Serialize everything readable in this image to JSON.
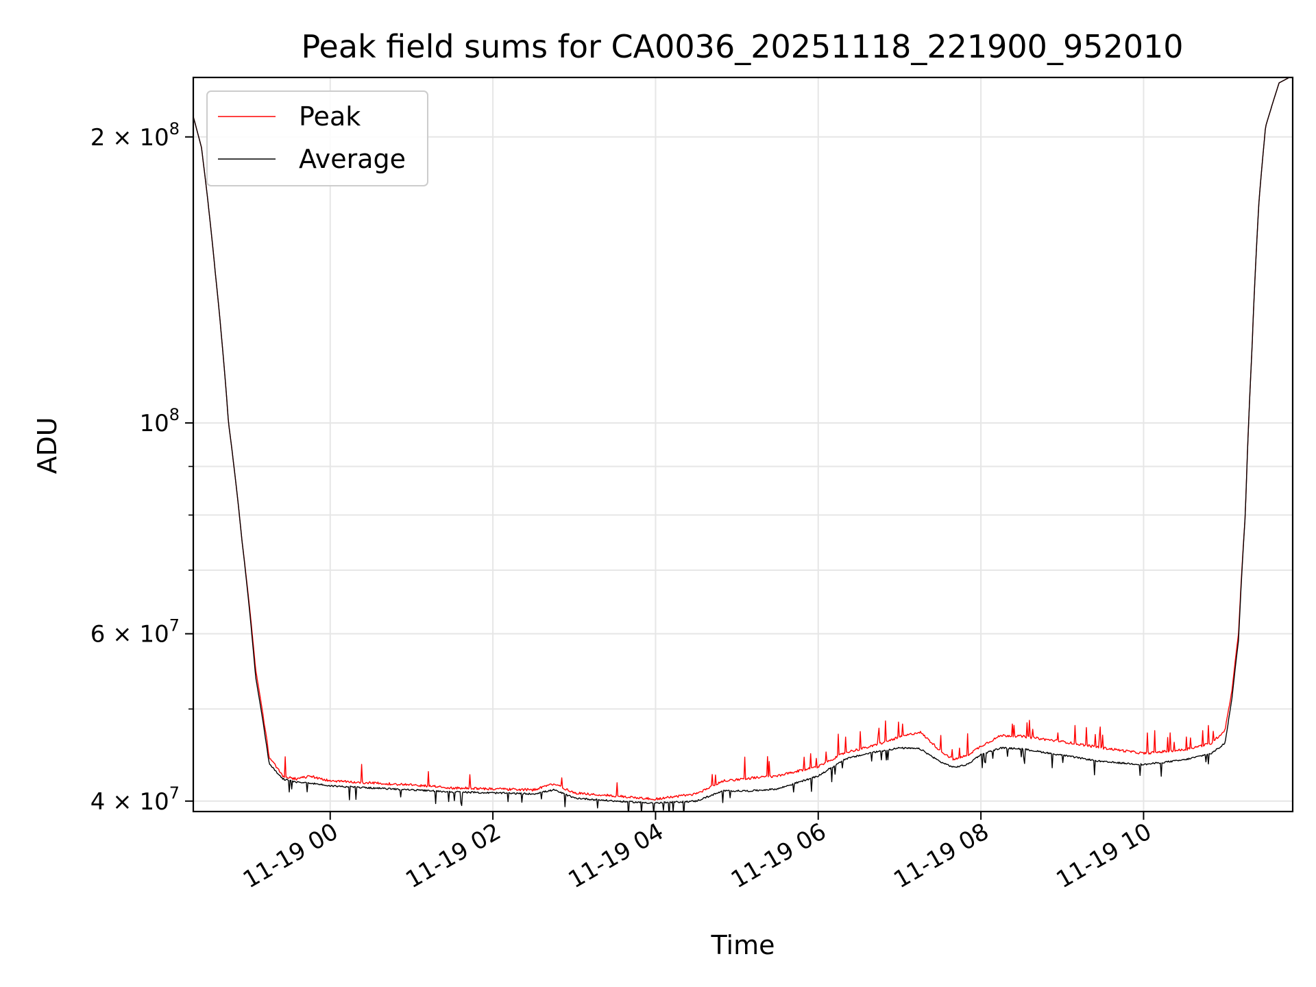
{
  "chart_data": {
    "type": "line",
    "title": "Peak field sums for CA0036_20251118_221900_952010",
    "xlabel": "Time",
    "ylabel": "ADU",
    "y_scale": "log",
    "ylim": [
      39000000,
      231000000
    ],
    "xlim": [
      "11-18 22:19",
      "11-19 11:50"
    ],
    "grid": true,
    "legend_position": "top-left",
    "x_ticks": [
      {
        "t": "11-19 00:00",
        "label": "11-19 00"
      },
      {
        "t": "11-19 02:00",
        "label": "11-19 02"
      },
      {
        "t": "11-19 04:00",
        "label": "11-19 04"
      },
      {
        "t": "11-19 06:00",
        "label": "11-19 06"
      },
      {
        "t": "11-19 08:00",
        "label": "11-19 08"
      },
      {
        "t": "11-19 10:00",
        "label": "11-19 10"
      }
    ],
    "y_major_ticks": [
      {
        "value": 40000000,
        "base": "4 × 10",
        "exp": "7"
      },
      {
        "value": 60000000,
        "base": "6 × 10",
        "exp": "7"
      },
      {
        "value": 100000000,
        "base": "10",
        "exp": "8"
      },
      {
        "value": 200000000,
        "base": "2 × 10",
        "exp": "8"
      }
    ],
    "y_minor_ticks": [
      50000000,
      70000000,
      80000000,
      90000000
    ],
    "series": [
      {
        "name": "Peak",
        "color": "#ff0000",
        "x": [
          "11-18 22:19",
          "11-18 22:25",
          "11-18 22:35",
          "11-18 22:45",
          "11-18 22:55",
          "11-18 23:05",
          "11-18 23:15",
          "11-18 23:25",
          "11-18 23:35",
          "11-18 23:45",
          "11-19 00:00",
          "11-19 00:30",
          "11-19 01:00",
          "11-19 01:30",
          "11-19 02:00",
          "11-19 02:30",
          "11-19 02:45",
          "11-19 03:00",
          "11-19 03:30",
          "11-19 04:00",
          "11-19 04:30",
          "11-19 04:50",
          "11-19 05:10",
          "11-19 05:30",
          "11-19 06:00",
          "11-19 06:20",
          "11-19 06:40",
          "11-19 07:00",
          "11-19 07:15",
          "11-19 07:30",
          "11-19 07:40",
          "11-19 07:50",
          "11-19 08:00",
          "11-19 08:15",
          "11-19 08:30",
          "11-19 09:00",
          "11-19 09:30",
          "11-19 10:00",
          "11-19 10:30",
          "11-19 10:50",
          "11-19 11:00",
          "11-19 11:05",
          "11-19 11:10",
          "11-19 11:15",
          "11-19 11:20",
          "11-19 11:25",
          "11-19 11:30",
          "11-19 11:40",
          "11-19 11:50"
        ],
        "y": [
          210000000,
          195000000,
          145000000,
          100000000,
          75000000,
          55000000,
          44500000,
          42500000,
          42200000,
          42500000,
          42000000,
          41800000,
          41600000,
          41300000,
          41200000,
          41100000,
          41700000,
          40800000,
          40500000,
          40200000,
          40700000,
          42000000,
          42300000,
          42500000,
          43500000,
          45000000,
          45700000,
          46700000,
          47300000,
          45200000,
          44200000,
          44700000,
          45700000,
          46900000,
          46800000,
          46200000,
          45500000,
          44900000,
          45300000,
          46000000,
          47500000,
          52000000,
          60000000,
          80000000,
          120000000,
          170000000,
          205000000,
          228000000,
          232000000
        ]
      },
      {
        "name": "Average",
        "color": "#000000",
        "x": [
          "11-18 22:19",
          "11-18 22:25",
          "11-18 22:35",
          "11-18 22:45",
          "11-18 22:55",
          "11-18 23:05",
          "11-18 23:15",
          "11-18 23:25",
          "11-18 23:35",
          "11-18 23:45",
          "11-19 00:00",
          "11-19 00:30",
          "11-19 01:00",
          "11-19 01:30",
          "11-19 02:00",
          "11-19 02:30",
          "11-19 02:45",
          "11-19 03:00",
          "11-19 03:30",
          "11-19 04:00",
          "11-19 04:30",
          "11-19 04:50",
          "11-19 05:10",
          "11-19 05:30",
          "11-19 06:00",
          "11-19 06:20",
          "11-19 06:40",
          "11-19 07:00",
          "11-19 07:15",
          "11-19 07:30",
          "11-19 07:40",
          "11-19 07:50",
          "11-19 08:00",
          "11-19 08:15",
          "11-19 08:30",
          "11-19 09:00",
          "11-19 09:30",
          "11-19 10:00",
          "11-19 10:30",
          "11-19 10:50",
          "11-19 11:00",
          "11-19 11:05",
          "11-19 11:10",
          "11-19 11:15",
          "11-19 11:20",
          "11-19 11:25",
          "11-19 11:30",
          "11-19 11:40",
          "11-19 11:50"
        ],
        "y": [
          210000000,
          195000000,
          145000000,
          100000000,
          75000000,
          54000000,
          43800000,
          42200000,
          41900000,
          41800000,
          41500000,
          41300000,
          41100000,
          40900000,
          40800000,
          40700000,
          41100000,
          40300000,
          40000000,
          39800000,
          40000000,
          41000000,
          41000000,
          41200000,
          42500000,
          44300000,
          45000000,
          45500000,
          45400000,
          44000000,
          43400000,
          43700000,
          44800000,
          45500000,
          45400000,
          44700000,
          44000000,
          43700000,
          44200000,
          44900000,
          46000000,
          51000000,
          59000000,
          80000000,
          120000000,
          170000000,
          205000000,
          228000000,
          232000000
        ]
      }
    ]
  }
}
